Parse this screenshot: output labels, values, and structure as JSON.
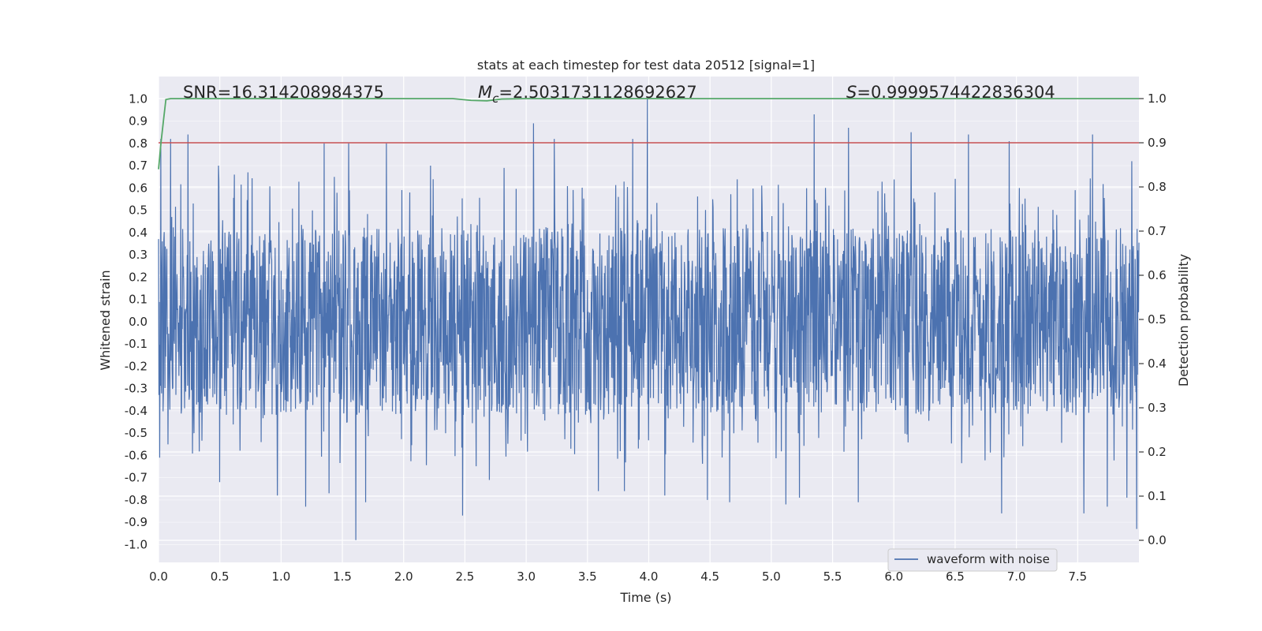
{
  "chart_data": {
    "type": "line",
    "title": "stats at each timestep for test data 20512 [signal=1]",
    "xlabel": "Time (s)",
    "ylabel": "Whitened strain",
    "y2label": "Detection probability",
    "xlim": [
      0,
      8
    ],
    "ylim": [
      -1.08,
      1.1
    ],
    "y2lim": [
      -0.05,
      1.05
    ],
    "xticks": [
      0.0,
      0.5,
      1.0,
      1.5,
      2.0,
      2.5,
      3.0,
      3.5,
      4.0,
      4.5,
      5.0,
      5.5,
      6.0,
      6.5,
      7.0,
      7.5
    ],
    "xtick_labels": [
      "0.0",
      "0.5",
      "1.0",
      "1.5",
      "2.0",
      "2.5",
      "3.0",
      "3.5",
      "4.0",
      "4.5",
      "5.0",
      "5.5",
      "6.0",
      "6.5",
      "7.0",
      "7.5"
    ],
    "yticks": [
      1.0,
      0.9,
      0.8,
      0.7,
      0.6,
      0.5,
      0.4,
      0.3,
      0.2,
      0.1,
      0.0,
      -0.1,
      -0.2,
      -0.3,
      -0.4,
      -0.5,
      -0.6,
      -0.7,
      -0.8,
      -0.9,
      -1.0
    ],
    "ytick_labels": [
      "1.0",
      "0.9",
      "0.8",
      "0.7",
      "0.6",
      "0.5",
      "0.4",
      "0.3",
      "0.2",
      "0.1",
      "0.0",
      "-0.1",
      "-0.2",
      "-0.3",
      "-0.4",
      "-0.5",
      "-0.6",
      "-0.7",
      "-0.8",
      "-0.9",
      "-1.0"
    ],
    "y2ticks": [
      1.0,
      0.9,
      0.8,
      0.7,
      0.6,
      0.5,
      0.4,
      0.3,
      0.2,
      0.1,
      0.0
    ],
    "y2tick_labels": [
      "1.0",
      "0.9",
      "0.8",
      "0.7",
      "0.6",
      "0.5",
      "0.4",
      "0.3",
      "0.2",
      "0.1",
      "0.0"
    ],
    "annotations": {
      "snr": "SNR=16.314208984375",
      "mc_symbol": "M",
      "mc_subscript": "c",
      "mc_value": "=2.5031731128692627",
      "s_symbol": "S",
      "s_value": "=0.9999574422836304"
    },
    "legend": {
      "label": "waveform with noise",
      "placement": "lower-right"
    },
    "threshold_line": {
      "axis": "right",
      "value": 0.9,
      "color": "#c44e52"
    },
    "series": [
      {
        "name": "waveform with noise",
        "axis": "left",
        "color": "#4c72b0",
        "sample_rate_hz": 512,
        "duration_s": 8,
        "typical_range": [
          -0.42,
          0.42
        ],
        "peaks": [
          {
            "t": 0.02,
            "v": 0.82
          },
          {
            "t": 0.1,
            "v": 0.82
          },
          {
            "t": 0.24,
            "v": 0.84
          },
          {
            "t": 0.49,
            "v": 0.7
          },
          {
            "t": 0.62,
            "v": 0.66
          },
          {
            "t": 0.73,
            "v": 0.67
          },
          {
            "t": 1.35,
            "v": 0.8
          },
          {
            "t": 1.55,
            "v": 0.8
          },
          {
            "t": 1.86,
            "v": 0.8
          },
          {
            "t": 2.22,
            "v": 0.7
          },
          {
            "t": 2.82,
            "v": 0.69
          },
          {
            "t": 3.06,
            "v": 0.89
          },
          {
            "t": 3.23,
            "v": 0.82
          },
          {
            "t": 3.87,
            "v": 0.82
          },
          {
            "t": 3.99,
            "v": 1.0
          },
          {
            "t": 5.35,
            "v": 0.93
          },
          {
            "t": 5.63,
            "v": 0.87
          },
          {
            "t": 6.14,
            "v": 0.85
          },
          {
            "t": 6.61,
            "v": 0.84
          },
          {
            "t": 6.94,
            "v": 0.81
          },
          {
            "t": 7.62,
            "v": 0.84
          },
          {
            "t": 7.94,
            "v": 0.72
          }
        ],
        "troughs": [
          {
            "t": 0.01,
            "v": -0.61
          },
          {
            "t": 0.5,
            "v": -0.72
          },
          {
            "t": 0.97,
            "v": -0.78
          },
          {
            "t": 1.2,
            "v": -0.83
          },
          {
            "t": 1.39,
            "v": -0.77
          },
          {
            "t": 1.61,
            "v": -0.98
          },
          {
            "t": 1.69,
            "v": -0.81
          },
          {
            "t": 2.48,
            "v": -0.87
          },
          {
            "t": 2.7,
            "v": -0.71
          },
          {
            "t": 3.59,
            "v": -0.76
          },
          {
            "t": 3.8,
            "v": -0.76
          },
          {
            "t": 4.13,
            "v": -0.78
          },
          {
            "t": 4.48,
            "v": -0.8
          },
          {
            "t": 4.66,
            "v": -0.81
          },
          {
            "t": 5.12,
            "v": -0.82
          },
          {
            "t": 5.23,
            "v": -0.79
          },
          {
            "t": 5.71,
            "v": -0.81
          },
          {
            "t": 6.88,
            "v": -0.86
          },
          {
            "t": 7.55,
            "v": -0.86
          },
          {
            "t": 7.74,
            "v": -0.83
          },
          {
            "t": 7.9,
            "v": -0.79
          },
          {
            "t": 7.98,
            "v": -0.93
          }
        ]
      },
      {
        "name": "detection probability",
        "axis": "right",
        "color": "#55a868",
        "points": [
          [
            0.0,
            0.84
          ],
          [
            0.02,
            0.9
          ],
          [
            0.04,
            0.95
          ],
          [
            0.06,
            0.998
          ],
          [
            0.1,
            1.0
          ],
          [
            2.4,
            1.0
          ],
          [
            2.55,
            0.996
          ],
          [
            2.68,
            0.995
          ],
          [
            2.8,
            0.999
          ],
          [
            3.0,
            1.0
          ],
          [
            8.0,
            1.0
          ]
        ]
      }
    ]
  }
}
